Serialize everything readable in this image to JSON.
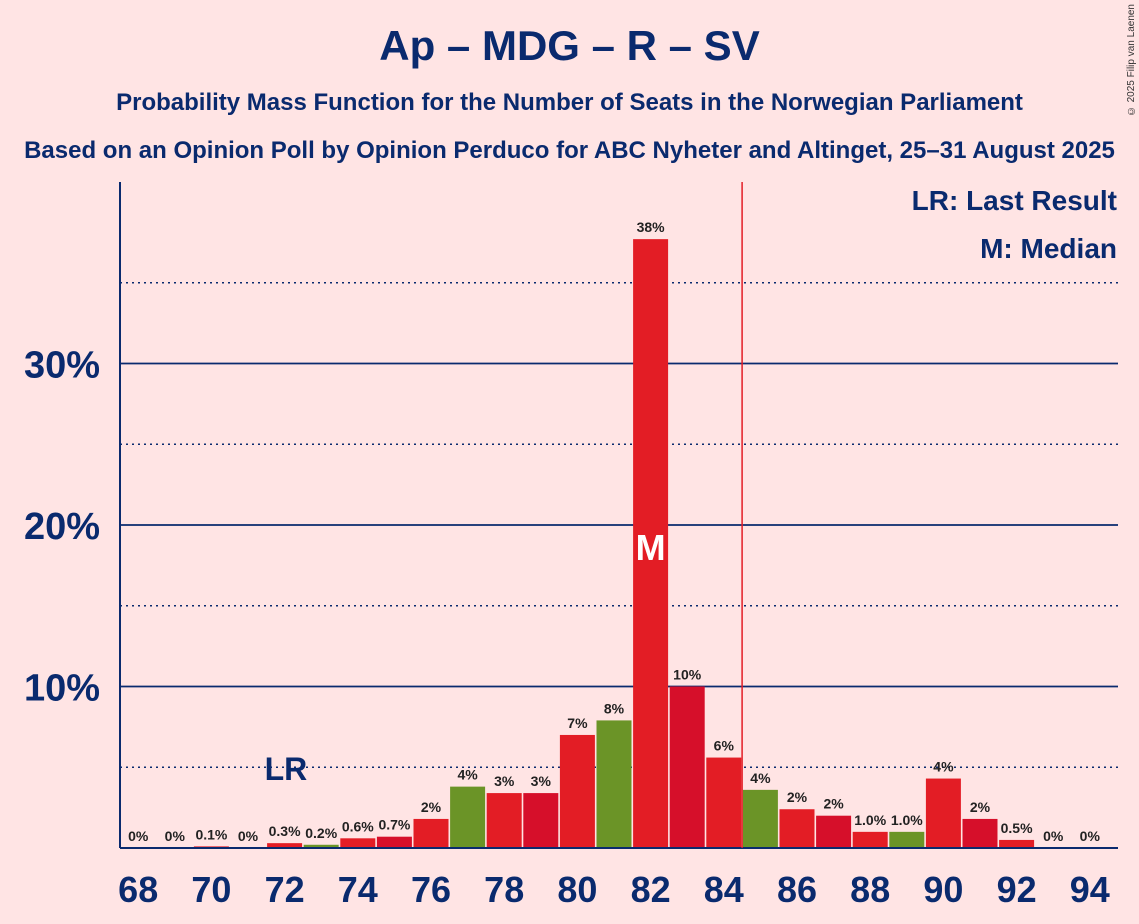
{
  "title": "Ap – MDG – R – SV",
  "subtitle": "Probability Mass Function for the Number of Seats in the Norwegian Parliament",
  "subtitle2": "Based on an Opinion Poll by Opinion Perduco for ABC Nyheter and Altinget, 25–31 August 2025",
  "copyright": "© 2025 Filip van Laenen",
  "legend": {
    "last_result": "LR: Last Result",
    "median": "M: Median"
  },
  "markers": {
    "last_result_label": "LR",
    "last_result_seat": 72,
    "median_label": "M",
    "median_seat": 82,
    "majority_line_seat": 84.5
  },
  "colors": {
    "background": "#ffe4e4",
    "axis": "#0a2a6e",
    "red_a": "#e31d25",
    "red_b": "#d60f2a",
    "green": "#6b9427",
    "majority_line": "#e31d25"
  },
  "chart_data": {
    "type": "bar",
    "ylim": [
      0,
      40
    ],
    "yticks": [
      10,
      20,
      30
    ],
    "ytick_labels": [
      "10%",
      "20%",
      "30%"
    ],
    "x": [
      68,
      69,
      70,
      71,
      72,
      73,
      74,
      75,
      76,
      77,
      78,
      79,
      80,
      81,
      82,
      83,
      84,
      85,
      86,
      87,
      88,
      89,
      90,
      91,
      92,
      93,
      94
    ],
    "xtick_labels": [
      "68",
      "70",
      "72",
      "74",
      "76",
      "78",
      "80",
      "82",
      "84",
      "86",
      "88",
      "90",
      "92",
      "94"
    ],
    "values": [
      0,
      0,
      0.1,
      0,
      0.3,
      0.2,
      0.6,
      0.7,
      1.8,
      3.8,
      3.4,
      3.4,
      7.0,
      7.9,
      37.7,
      10.0,
      5.6,
      3.6,
      2.4,
      2.0,
      1.0,
      1.0,
      4.3,
      1.8,
      0.5,
      0,
      0
    ],
    "labels": [
      "0%",
      "0%",
      "0.1%",
      "0%",
      "0.3%",
      "0.2%",
      "0.6%",
      "0.7%",
      "2%",
      "4%",
      "3%",
      "3%",
      "7%",
      "8%",
      "38%",
      "10%",
      "6%",
      "4%",
      "2%",
      "2%",
      "1.0%",
      "1.0%",
      "4%",
      "2%",
      "0.5%",
      "0%",
      "0%"
    ],
    "bar_colors": [
      "red_a",
      "red_b",
      "red_a",
      "red_b",
      "red_a",
      "green",
      "red_a",
      "red_b",
      "red_a",
      "green",
      "red_a",
      "red_b",
      "red_a",
      "green",
      "red_a",
      "red_b",
      "red_a",
      "green",
      "red_a",
      "red_b",
      "red_a",
      "green",
      "red_a",
      "red_b",
      "red_a",
      "red_b",
      "red_a"
    ]
  }
}
